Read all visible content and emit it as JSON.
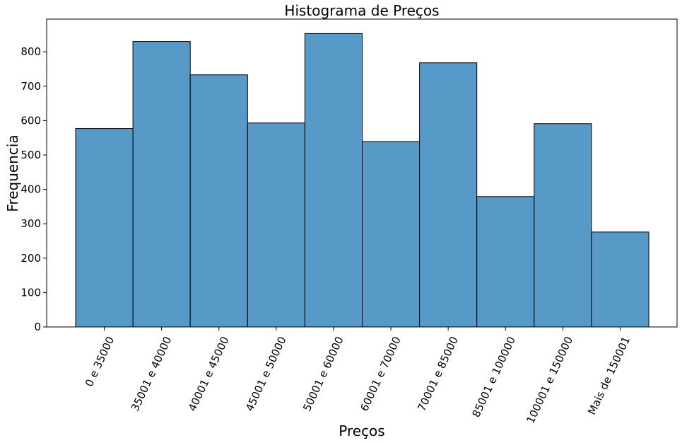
{
  "chart_data": {
    "type": "bar",
    "title": "Histograma de Preços",
    "xlabel": "Preços",
    "ylabel": "Frequencia",
    "categories": [
      "0 e 35000",
      "35001 e 40000",
      "40001 e 45000",
      "45001 e 50000",
      "50001 e 60000",
      "60001 e 70000",
      "70001 e 85000",
      "85001 e 100000",
      "100001 e 150000",
      "Mais de 150001"
    ],
    "values": [
      577,
      830,
      733,
      593,
      853,
      539,
      768,
      379,
      591,
      276
    ],
    "ylim": [
      0,
      895
    ],
    "yticks": [
      0,
      100,
      200,
      300,
      400,
      500,
      600,
      700,
      800
    ],
    "bar_color": "#5799c7",
    "grid": false,
    "legend": "none"
  }
}
